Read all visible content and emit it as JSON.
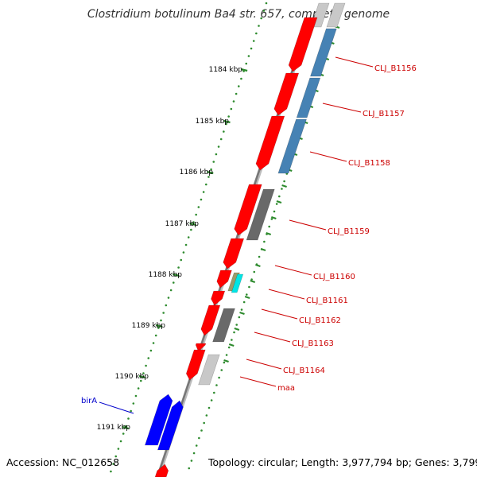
{
  "title": "Clostridium botulinum Ba4 str. 657, complete genome",
  "footer": {
    "accession": "Accession: NC_012658",
    "topology": "Topology: circular; Length: 3,977,794 bp; Genes: 3,799"
  },
  "colors": {
    "forward_cds": "#ff0000",
    "reverse_cds": "#4682b4",
    "grey_gene": "#696969",
    "light_gene": "#c8c8c8",
    "bira_gene": "#0000ff",
    "gc_tick": "#2e8b2e",
    "label_red": "#cc0000",
    "label_blue": "#0000cc",
    "backbone": "#888888"
  },
  "kbp_labels": [
    "1184 kbp",
    "1185 kbp",
    "1186 kbp",
    "1187 kbp",
    "1188 kbp",
    "1189 kbp",
    "1190 kbp",
    "1191 kbp"
  ],
  "gene_labels": [
    {
      "text": "CLJ_B1156",
      "color": "red"
    },
    {
      "text": "CLJ_B1157",
      "color": "red"
    },
    {
      "text": "CLJ_B1158",
      "color": "red"
    },
    {
      "text": "CLJ_B1159",
      "color": "red"
    },
    {
      "text": "CLJ_B1160",
      "color": "red"
    },
    {
      "text": "CLJ_B1161",
      "color": "red"
    },
    {
      "text": "CLJ_B1162",
      "color": "red"
    },
    {
      "text": "CLJ_B1163",
      "color": "red"
    },
    {
      "text": "CLJ_B1164",
      "color": "red"
    },
    {
      "text": "maa",
      "color": "red"
    },
    {
      "text": "birA",
      "color": "blue"
    }
  ]
}
